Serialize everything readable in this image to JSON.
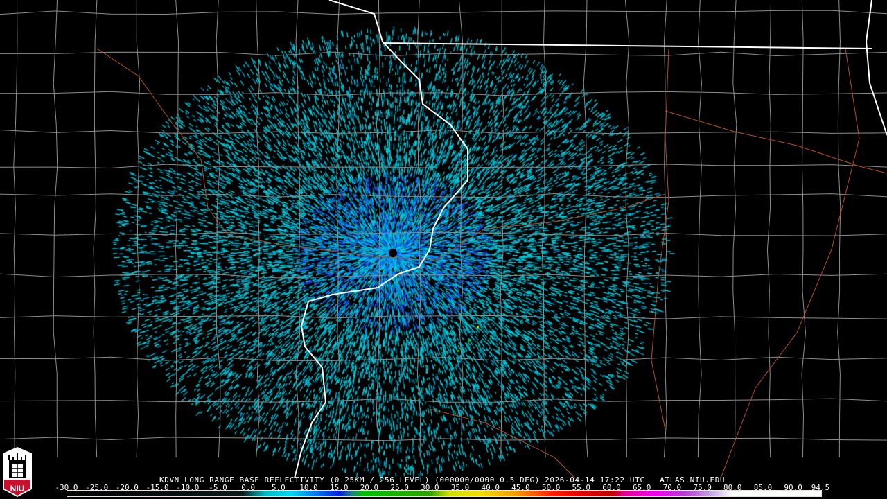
{
  "product": {
    "title": "KDVN LONG RANGE BASE REFLECTIVITY (0.25KM / 256 LEVEL) (000000/0000 0.5 DEG) 2026-04-14 17:22 UTC   ATLAS.NIU.EDU",
    "logo_text": "NIU"
  },
  "colorbar": {
    "min": -30.0,
    "max": 94.5,
    "tick_labels": [
      "-30.0",
      "-25.0",
      "-20.0",
      "-15.0",
      "-10.0",
      "-5.0",
      "0.0",
      "5.0",
      "10.0",
      "15.0",
      "20.0",
      "25.0",
      "30.0",
      "35.0",
      "40.0",
      "45.0",
      "50.0",
      "55.0",
      "60.0",
      "65.0",
      "70.0",
      "75.0",
      "80.0",
      "85.0",
      "90.0",
      "94.5"
    ],
    "color_stops": [
      {
        "value": -30,
        "color": "#000000"
      },
      {
        "value": -1,
        "color": "#0a1a1a"
      },
      {
        "value": 1,
        "color": "#087878"
      },
      {
        "value": 3,
        "color": "#00c0c8"
      },
      {
        "value": 7,
        "color": "#00d8f0"
      },
      {
        "value": 10,
        "color": "#0090f0"
      },
      {
        "value": 15,
        "color": "#0020e0"
      },
      {
        "value": 17,
        "color": "#208080"
      },
      {
        "value": 19,
        "color": "#00c000"
      },
      {
        "value": 30,
        "color": "#30a000"
      },
      {
        "value": 33,
        "color": "#d0e000"
      },
      {
        "value": 38,
        "color": "#f0e000"
      },
      {
        "value": 44,
        "color": "#f0a000"
      },
      {
        "value": 50,
        "color": "#ff2000"
      },
      {
        "value": 55,
        "color": "#e00000"
      },
      {
        "value": 60,
        "color": "#c00000"
      },
      {
        "value": 62,
        "color": "#e00090"
      },
      {
        "value": 67,
        "color": "#f000f0"
      },
      {
        "value": 72,
        "color": "#b040d0"
      },
      {
        "value": 76,
        "color": "#c0a0e0"
      },
      {
        "value": 80,
        "color": "#ffffff"
      },
      {
        "value": 94.5,
        "color": "#ffffff"
      }
    ]
  },
  "map_colors": {
    "county": "#8c8c8c",
    "state": "#ffffff",
    "river": "#b0502a",
    "echo_light": "#00d8e8",
    "echo_strong": "#1030e0"
  }
}
